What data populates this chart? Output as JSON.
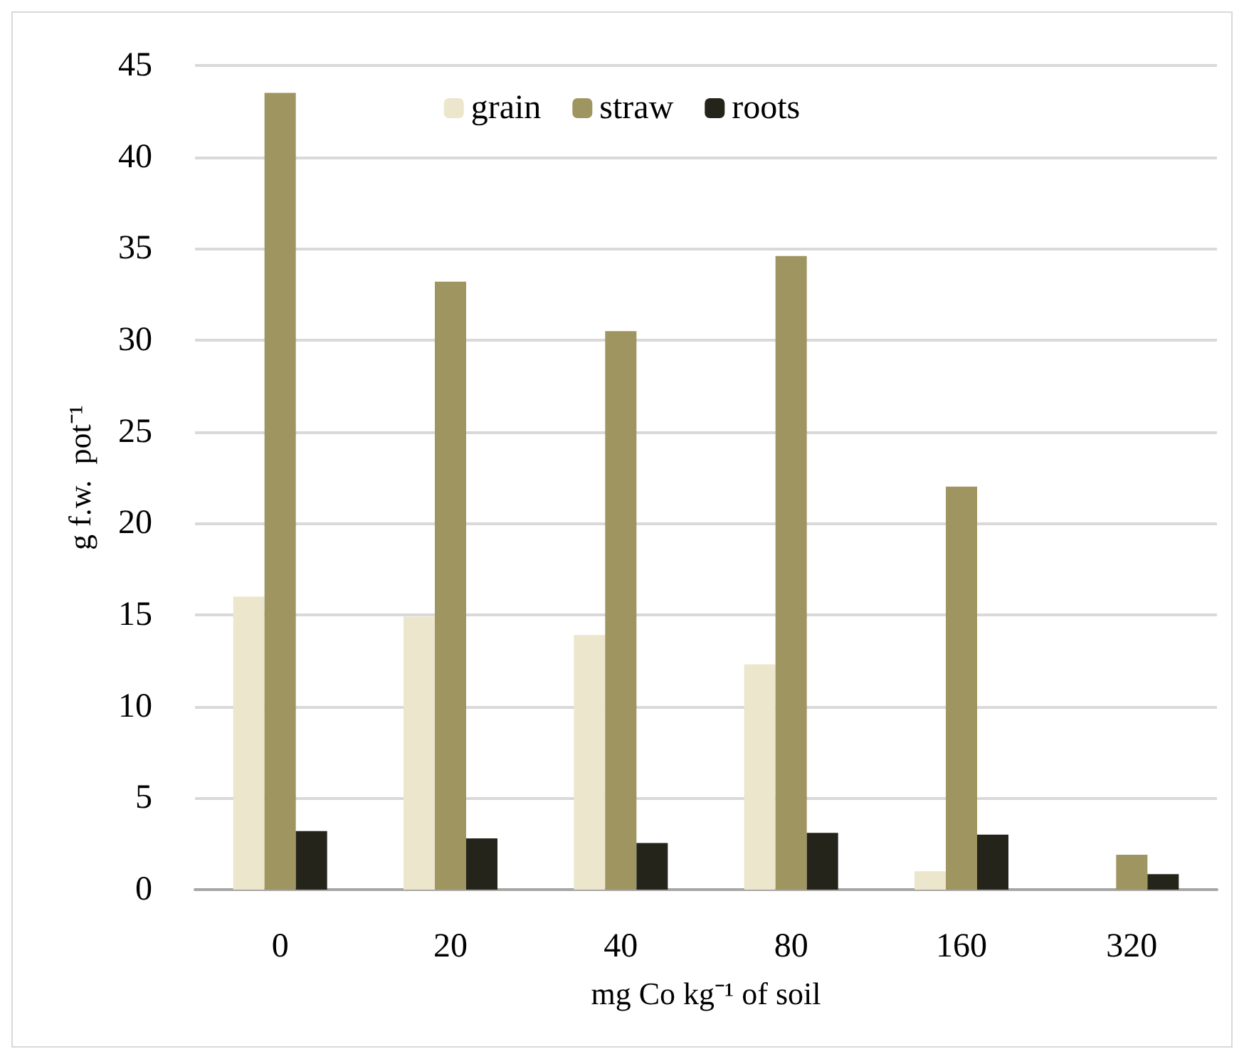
{
  "chart_data": {
    "type": "bar",
    "xlabel": "mg Co kg⁻¹ of soil",
    "ylabel": "g f.w.  pot⁻¹",
    "categories": [
      "0",
      "20",
      "40",
      "80",
      "160",
      "320"
    ],
    "series": [
      {
        "name": "grain",
        "color": "#ece6cc",
        "values": [
          16.0,
          14.9,
          13.9,
          12.3,
          1.0,
          null
        ]
      },
      {
        "name": "straw",
        "color": "#9e9561",
        "values": [
          43.5,
          33.2,
          30.5,
          34.6,
          22.0,
          1.9
        ]
      },
      {
        "name": "roots",
        "color": "#25241a",
        "values": [
          3.2,
          2.8,
          2.55,
          3.1,
          3.0,
          0.85
        ]
      }
    ],
    "ylim": [
      0,
      45
    ],
    "yticks": [
      0,
      5,
      10,
      15,
      20,
      25,
      30,
      35,
      40,
      45
    ],
    "grid": "y",
    "legend": "top"
  }
}
